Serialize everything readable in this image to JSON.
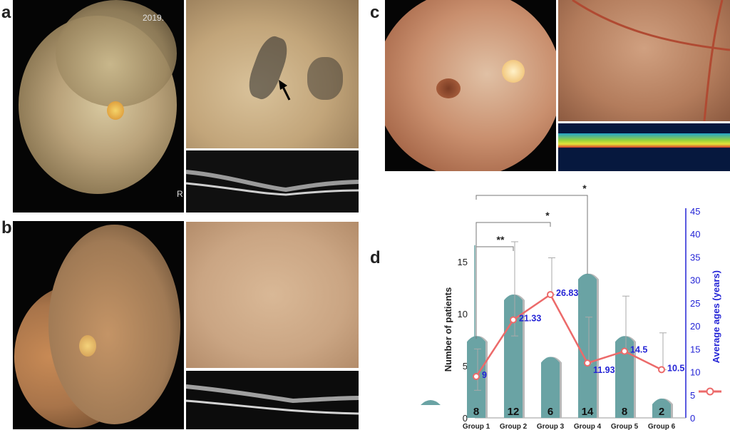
{
  "panels": {
    "a": {
      "letter": "a",
      "year_text": "2019.",
      "eye_text": "R"
    },
    "b": {
      "letter": "b"
    },
    "c": {
      "letter": "c"
    },
    "d": {
      "letter": "d"
    }
  },
  "colors": {
    "bar": "#6aa3a4",
    "bar_shadow": "#b8b8b8",
    "line": "#ec6a6a",
    "right_axis": "#2424d6",
    "bracket": "#777777"
  },
  "chart_data": {
    "type": "bar",
    "categories": [
      "Group 1",
      "Group 2",
      "Group 3",
      "Group 4",
      "Group 5",
      "Group 6"
    ],
    "left_axis": {
      "label": "Number of patients",
      "ticks": [
        0,
        5,
        10,
        15
      ],
      "range": [
        0,
        17
      ]
    },
    "right_axis": {
      "label": "Average ages (years)",
      "ticks": [
        0,
        5,
        10,
        15,
        20,
        25,
        30,
        35,
        40,
        45
      ],
      "range": [
        0,
        45
      ]
    },
    "series": [
      {
        "kind": "bar",
        "axis": "left",
        "values": [
          8,
          12,
          6,
          14,
          8,
          2
        ],
        "labels": [
          "8",
          "12",
          "6",
          "14",
          "8",
          "2"
        ]
      },
      {
        "kind": "line",
        "axis": "right",
        "values": [
          9,
          21.33,
          26.83,
          11.93,
          14.5,
          10.5
        ],
        "labels": [
          "9",
          "21.33",
          "26.83",
          "11.93",
          "14.5",
          "10.5"
        ],
        "error_low": [
          3,
          3.5,
          0,
          0,
          0,
          0
        ],
        "error_high": [
          6,
          17,
          8,
          10,
          12,
          8
        ]
      }
    ],
    "significance": [
      {
        "from": "Group 1",
        "to": "Group 2",
        "mark": "**"
      },
      {
        "from": "Group 1",
        "to": "Group 3",
        "mark": "*"
      },
      {
        "from": "Group 1",
        "to": "Group 4",
        "mark": "*"
      }
    ]
  }
}
